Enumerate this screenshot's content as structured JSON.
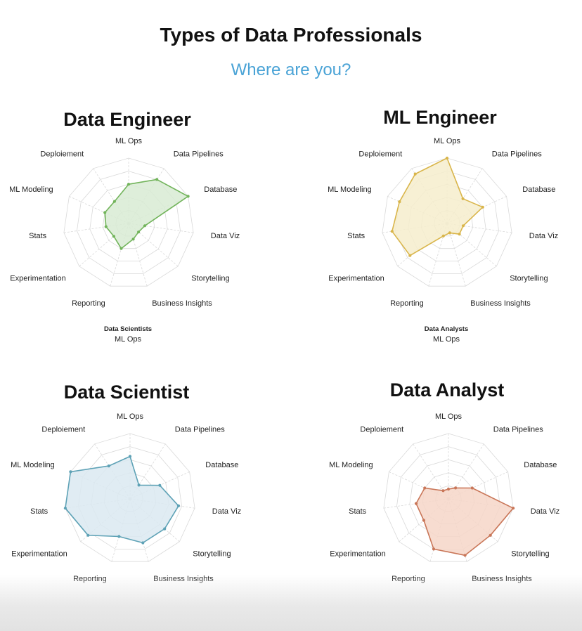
{
  "header": {
    "title": "Types of Data Professionals",
    "subtitle": "Where are you?"
  },
  "footers": {
    "left_title": "Data Scientists",
    "left_sub": "ML Ops",
    "right_title": "Data Analysts",
    "right_sub": "ML Ops"
  },
  "chart_data": [
    {
      "type": "radar",
      "title": "Data Engineer",
      "axes": [
        "ML Ops",
        "Data Pipelines",
        "Database",
        "Data Viz",
        "Storytelling",
        "Business Insights",
        "Reporting",
        "Experimentation",
        "Stats",
        "ML Modeling",
        "Deploiement"
      ],
      "values": [
        0.6,
        0.8,
        1.0,
        0.25,
        0.2,
        0.25,
        0.4,
        0.3,
        0.35,
        0.4,
        0.4
      ],
      "fill": "#d8ebd3",
      "stroke": "#72b45b",
      "rmax": 1.0,
      "grid": true
    },
    {
      "type": "radar",
      "title": "ML Engineer",
      "axes": [
        "ML Ops",
        "Data Pipelines",
        "Database",
        "Data Viz",
        "Storytelling",
        "Business Insights",
        "Reporting",
        "Experimentation",
        "Stats",
        "ML Modeling",
        "Deploiement"
      ],
      "values": [
        1.0,
        0.45,
        0.6,
        0.25,
        0.25,
        0.15,
        0.2,
        0.75,
        0.85,
        0.8,
        0.9
      ],
      "fill": "#f6edcc",
      "stroke": "#d9b54a",
      "rmax": 1.0,
      "grid": true
    },
    {
      "type": "radar",
      "title": "Data Scientist",
      "axes": [
        "ML Ops",
        "Data Pipelines",
        "Database",
        "Data Viz",
        "Storytelling",
        "Business Insights",
        "Reporting",
        "Experimentation",
        "Stats",
        "ML Modeling",
        "Deploiement"
      ],
      "values": [
        0.65,
        0.25,
        0.5,
        0.75,
        0.7,
        0.7,
        0.6,
        0.85,
        1.0,
        1.0,
        0.6
      ],
      "fill": "#dae9f1",
      "stroke": "#5ea2b6",
      "rmax": 1.0,
      "grid": true
    },
    {
      "type": "radar",
      "title": "Data Analyst",
      "axes": [
        "ML Ops",
        "Data Pipelines",
        "Database",
        "Data Viz",
        "Storytelling",
        "Business Insights",
        "Reporting",
        "Experimentation",
        "Stats",
        "ML Modeling",
        "Deploiement"
      ],
      "values": [
        0.15,
        0.2,
        0.4,
        1.0,
        0.85,
        0.9,
        0.8,
        0.5,
        0.5,
        0.4,
        0.15
      ],
      "fill": "#f6d6c8",
      "stroke": "#c97658",
      "rmax": 1.0,
      "grid": true
    }
  ]
}
